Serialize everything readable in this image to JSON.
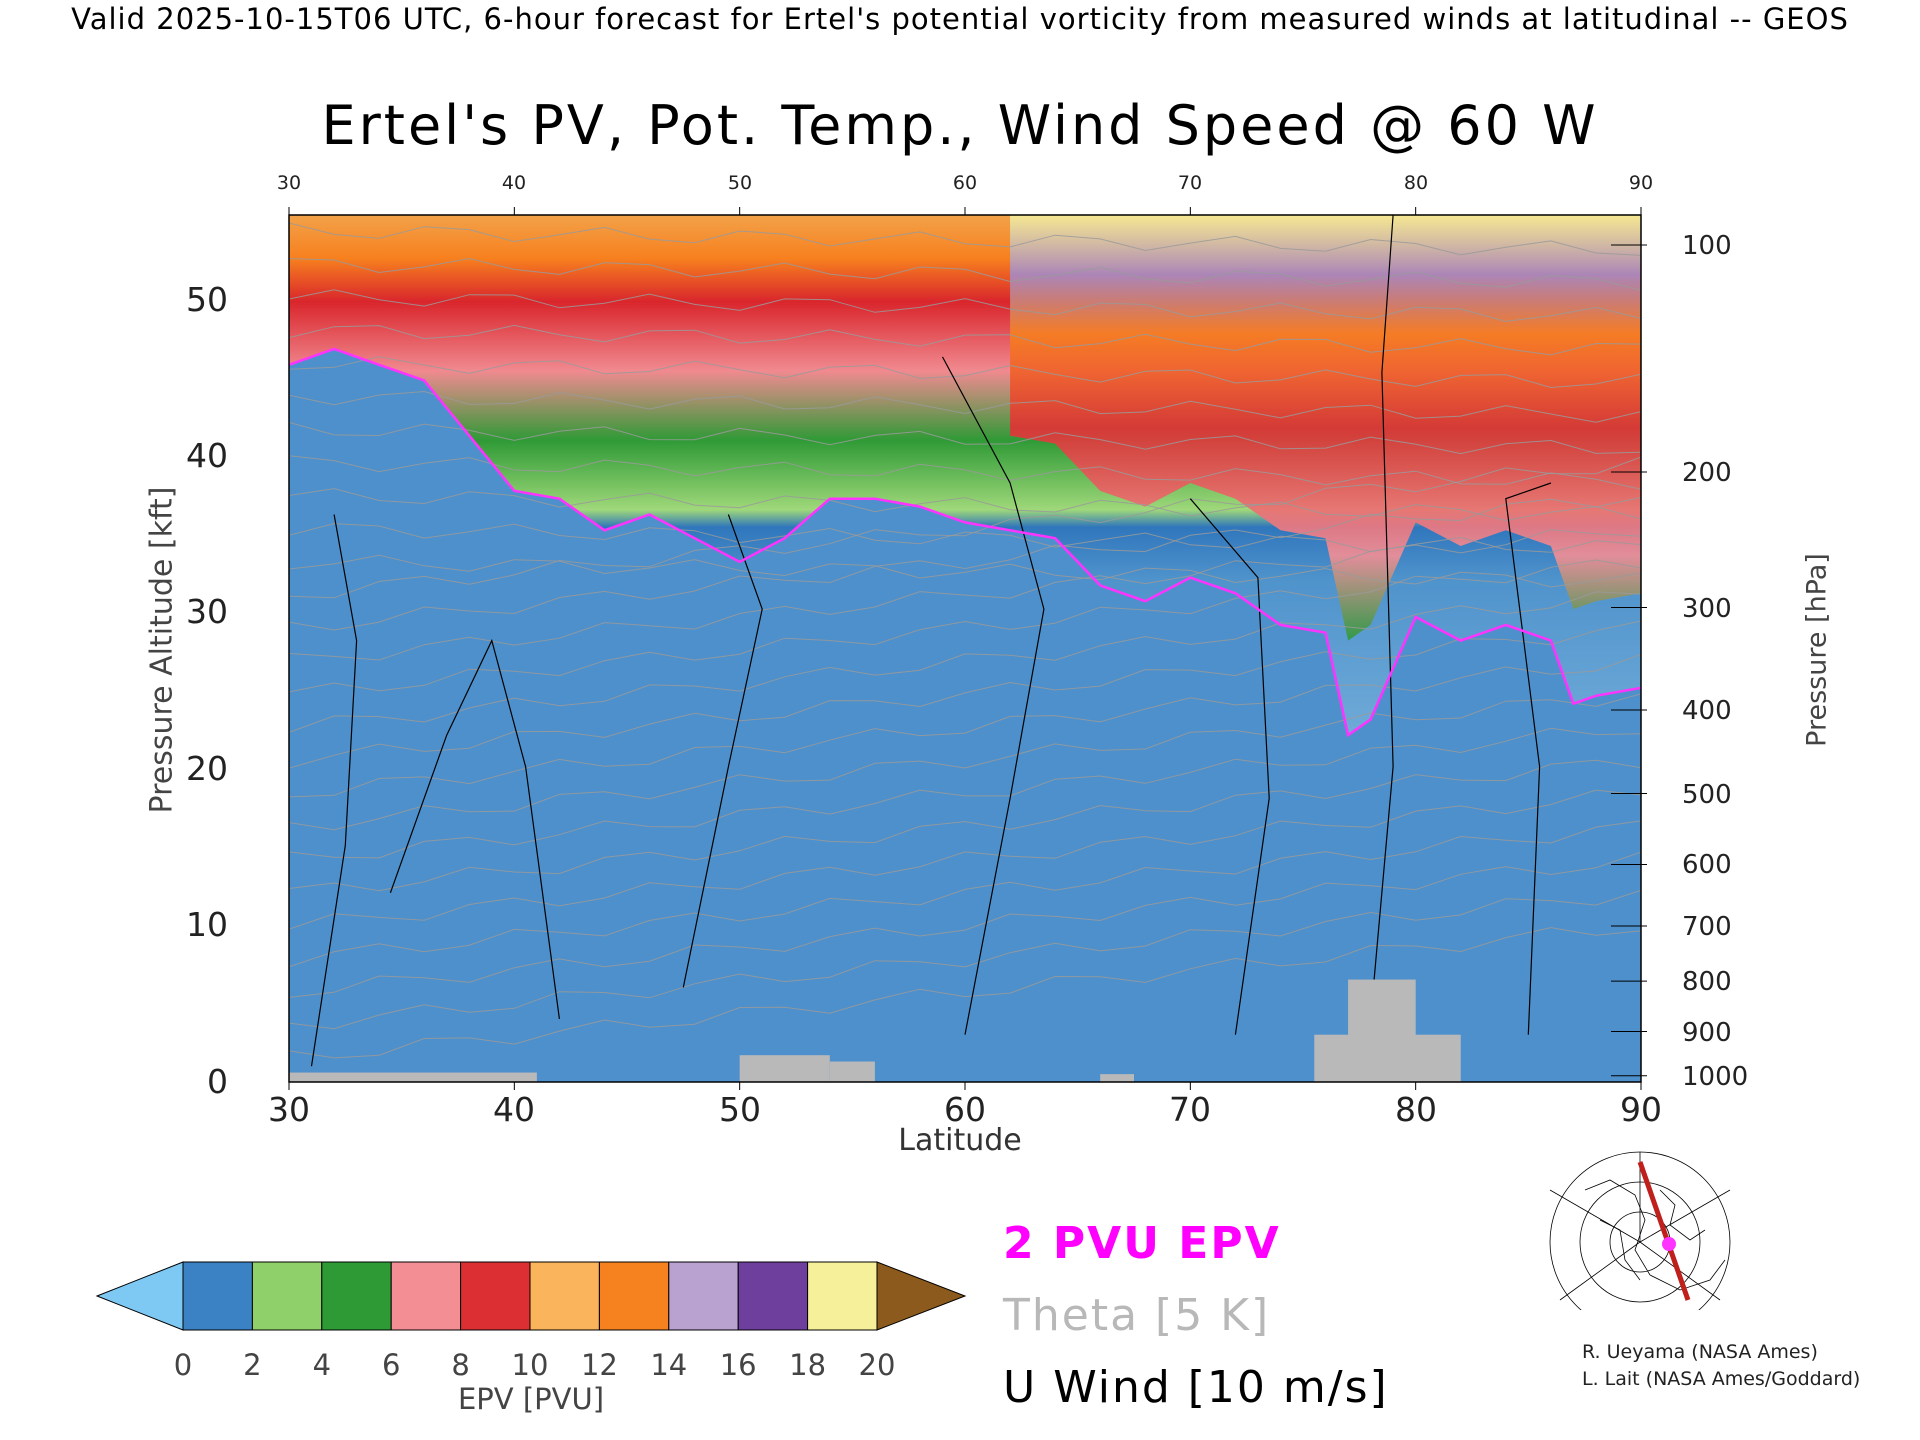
{
  "header": "Valid 2025-10-15T06 UTC, 6-hour forecast for Ertel's potential vorticity from measured winds at latitudinal -- GEOS",
  "chart_data": {
    "type": "heatmap",
    "title": "Ertel's PV, Pot. Temp., Wind Speed @ 60 W",
    "xlabel": "Latitude",
    "ylabel": "Pressure Altitude [kft]",
    "y2label": "Pressure [hPa]",
    "xlim": [
      30,
      90
    ],
    "ylim": [
      0,
      55
    ],
    "x_ticks": [
      "30",
      "40",
      "50",
      "60",
      "70",
      "80",
      "90"
    ],
    "y_ticks": [
      "0",
      "10",
      "20",
      "30",
      "40",
      "50"
    ],
    "pressure_ticks": [
      {
        "label": "100",
        "kft": 53.1
      },
      {
        "label": "200",
        "kft": 38.7
      },
      {
        "label": "300",
        "kft": 30.1
      },
      {
        "label": "400",
        "kft": 23.6
      },
      {
        "label": "500",
        "kft": 18.3
      },
      {
        "label": "600",
        "kft": 13.8
      },
      {
        "label": "700",
        "kft": 9.9
      },
      {
        "label": "800",
        "kft": 6.4
      },
      {
        "label": "900",
        "kft": 3.2
      },
      {
        "label": "1000",
        "kft": 0.4
      }
    ],
    "tropopause_2pvu_kft": [
      [
        30,
        45.5
      ],
      [
        32,
        46.5
      ],
      [
        34,
        45.5
      ],
      [
        36,
        44.5
      ],
      [
        38,
        41
      ],
      [
        40,
        37.5
      ],
      [
        42,
        37
      ],
      [
        44,
        35
      ],
      [
        46,
        36
      ],
      [
        48,
        34.5
      ],
      [
        50,
        33
      ],
      [
        52,
        34.5
      ],
      [
        54,
        37
      ],
      [
        56,
        37
      ],
      [
        58,
        36.5
      ],
      [
        60,
        35.5
      ],
      [
        62,
        35
      ],
      [
        64,
        34.5
      ],
      [
        66,
        31.5
      ],
      [
        68,
        30.5
      ],
      [
        70,
        32
      ],
      [
        72,
        31
      ],
      [
        74,
        29
      ],
      [
        76,
        28.5
      ],
      [
        77,
        22
      ],
      [
        78,
        23
      ],
      [
        80,
        29.5
      ],
      [
        82,
        28
      ],
      [
        84,
        29
      ],
      [
        86,
        28
      ],
      [
        87,
        24
      ],
      [
        88,
        24.5
      ],
      [
        90,
        25
      ]
    ],
    "wind_10ms_contours_kft": [
      [
        [
          31,
          1
        ],
        [
          32.5,
          15
        ],
        [
          33,
          28
        ],
        [
          32,
          36
        ]
      ],
      [
        [
          34.5,
          12
        ],
        [
          37,
          22
        ],
        [
          39,
          28
        ],
        [
          40.5,
          20
        ],
        [
          42,
          4
        ]
      ],
      [
        [
          47.5,
          6
        ],
        [
          49.5,
          20
        ],
        [
          51,
          30
        ],
        [
          49.5,
          36
        ]
      ],
      [
        [
          60,
          3
        ],
        [
          62,
          18
        ],
        [
          63.5,
          30
        ],
        [
          62,
          38
        ],
        [
          59,
          46
        ]
      ],
      [
        [
          72,
          3
        ],
        [
          73.5,
          18
        ],
        [
          73,
          32
        ],
        [
          70,
          37
        ]
      ],
      [
        [
          78,
          4
        ],
        [
          79,
          20
        ],
        [
          78.5,
          45
        ],
        [
          79,
          55
        ]
      ],
      [
        [
          85,
          3
        ],
        [
          85.5,
          20
        ],
        [
          84,
          37
        ],
        [
          86,
          38
        ]
      ]
    ],
    "legend": [
      "2 PVU EPV",
      "Theta [5 K]",
      "U Wind [10 m/s]"
    ],
    "colorbar": {
      "label": "EPV [PVU]",
      "ticks": [
        "0",
        "2",
        "4",
        "6",
        "8",
        "10",
        "12",
        "14",
        "16",
        "18",
        "20"
      ],
      "colors": [
        "#3a82c4",
        "#8fd06b",
        "#2e9a36",
        "#f48e95",
        "#dc2f33",
        "#f9b45c",
        "#f6821f",
        "#b9a2d0",
        "#6f3f9e",
        "#f6f09a"
      ],
      "under_color": "#7ec8f4",
      "over_color": "#8b5a1c"
    }
  },
  "credits": [
    "R. Ueyama (NASA Ames)",
    "L. Lait (NASA Ames/Goddard)"
  ]
}
